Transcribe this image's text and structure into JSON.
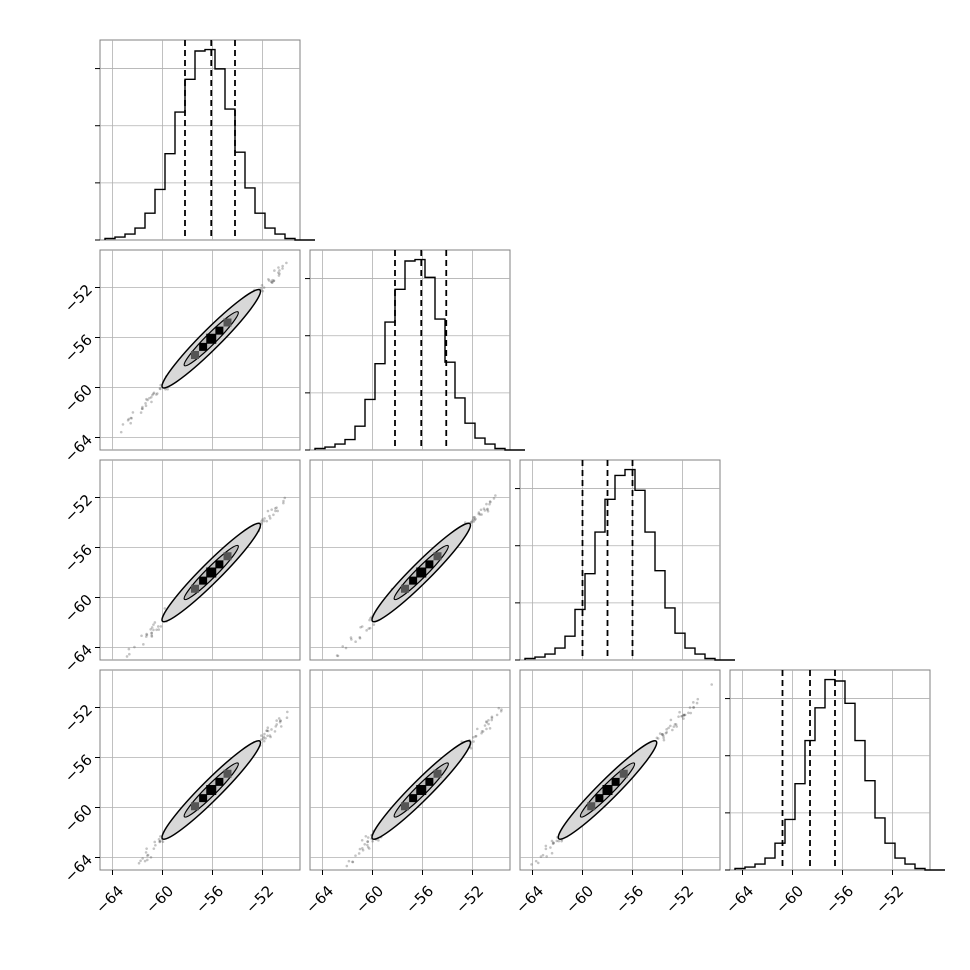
{
  "chart_data": {
    "type": "corner",
    "n_parameters": 4,
    "parameter_labels": [
      "",
      "",
      "",
      ""
    ],
    "axis_range": [
      -65,
      -49
    ],
    "tick_values": [
      -64,
      -60,
      -56,
      -52
    ],
    "tick_labels": [
      "−64",
      "−60",
      "−56",
      "−52"
    ],
    "grid": true,
    "colors": {
      "line": "#000000",
      "grid": "#b0b0b0",
      "contour_fill": "#d8d8d8",
      "points": "#555555"
    },
    "histograms": [
      {
        "parameter": 1,
        "bin_edges_start": -64.6,
        "bin_width": 0.8,
        "counts": [
          1,
          2,
          4,
          8,
          18,
          34,
          58,
          86,
          108,
          127,
          128,
          115,
          88,
          59,
          35,
          18,
          8,
          4,
          1,
          0,
          0
        ],
        "quantiles": [
          -58.2,
          -56.1,
          -54.2
        ]
      },
      {
        "parameter": 2,
        "bin_edges_start": -64.6,
        "bin_width": 0.8,
        "counts": [
          1,
          2,
          4,
          7,
          16,
          34,
          58,
          86,
          108,
          127,
          128,
          116,
          88,
          59,
          35,
          18,
          8,
          4,
          1,
          0,
          0
        ],
        "quantiles": [
          -58.2,
          -56.1,
          -54.1
        ]
      },
      {
        "parameter": 3,
        "bin_edges_start": -64.6,
        "bin_width": 0.8,
        "counts": [
          1,
          2,
          4,
          8,
          16,
          34,
          58,
          86,
          108,
          124,
          128,
          114,
          86,
          60,
          35,
          18,
          8,
          4,
          1,
          0,
          0
        ],
        "quantiles": [
          -60.0,
          -58.0,
          -56.0
        ]
      },
      {
        "parameter": 4,
        "bin_edges_start": -64.6,
        "bin_width": 0.8,
        "counts": [
          1,
          2,
          4,
          8,
          18,
          34,
          58,
          87,
          109,
          128,
          127,
          112,
          87,
          60,
          35,
          18,
          8,
          4,
          1,
          0,
          0
        ],
        "quantiles": [
          -60.8,
          -58.6,
          -56.6
        ]
      }
    ],
    "pairs": [
      {
        "x_param": 1,
        "y_param": 2,
        "mean": [
          -56.1,
          -56.1
        ],
        "extent": [
          -64.2,
          -49.6
        ]
      },
      {
        "x_param": 1,
        "y_param": 3,
        "mean": [
          -56.1,
          -58.0
        ],
        "extent": [
          -64.2,
          -49.6
        ]
      },
      {
        "x_param": 2,
        "y_param": 3,
        "mean": [
          -56.1,
          -58.0
        ],
        "extent": [
          -64.2,
          -49.6
        ]
      },
      {
        "x_param": 1,
        "y_param": 4,
        "mean": [
          -56.1,
          -58.6
        ],
        "extent": [
          -64.2,
          -49.6
        ]
      },
      {
        "x_param": 2,
        "y_param": 4,
        "mean": [
          -56.1,
          -58.6
        ],
        "extent": [
          -64.2,
          -49.6
        ]
      },
      {
        "x_param": 3,
        "y_param": 4,
        "mean": [
          -58.0,
          -58.6
        ],
        "extent": [
          -64.2,
          -49.6
        ]
      }
    ]
  }
}
